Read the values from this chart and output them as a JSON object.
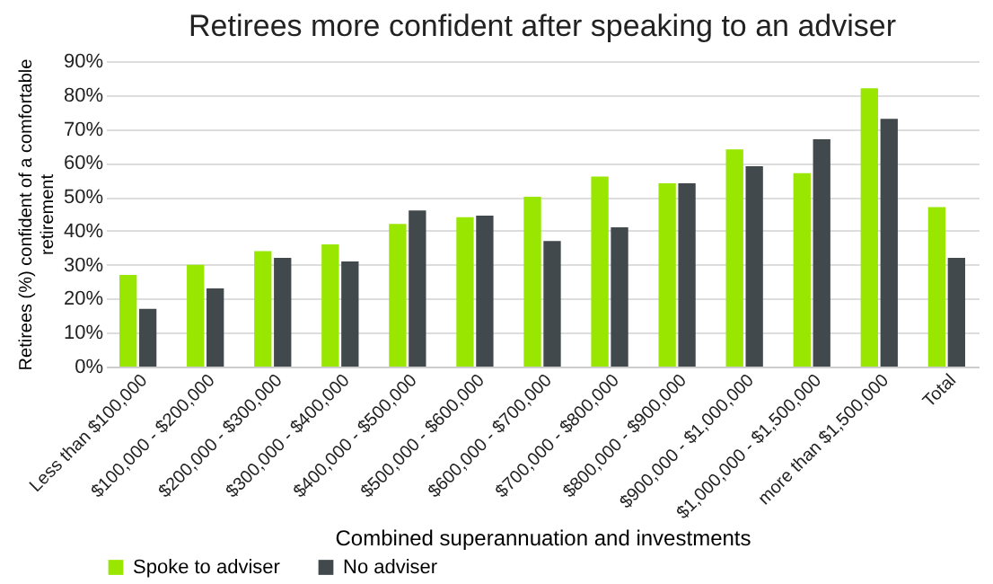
{
  "chart_data": {
    "type": "bar",
    "title": "Retirees more confident after speaking to an adviser",
    "xlabel": "Combined superannuation and investments",
    "ylabel": "Retirees (%) confident of a comfortable retirement",
    "categories": [
      "Less than $100,000",
      "$100,000 - $200,000",
      "$200,000 - $300,000",
      "$300,000 - $400,000",
      "$400,000 - $500,000",
      "$500,000 - $600,000",
      "$600,000 - $700,000",
      "$700,000 - $800,000",
      "$800,000 - $900,000",
      "$900,000 - $1,000,000",
      "$1,000,000 - $1,500,000",
      "more than $1,500,000",
      "Total"
    ],
    "series": [
      {
        "name": "Spoke to adviser",
        "color": "#99e600",
        "values": [
          27,
          30,
          34,
          36,
          42,
          44,
          50,
          56,
          54,
          64,
          57,
          82,
          47
        ]
      },
      {
        "name": "No adviser",
        "color": "#41494d",
        "values": [
          17,
          23,
          32,
          31,
          46,
          44.5,
          37,
          41,
          54,
          59,
          67,
          73,
          32
        ]
      }
    ],
    "ylim": [
      0,
      90
    ],
    "yticks": [
      {
        "value": 0,
        "label": "0%"
      },
      {
        "value": 10,
        "label": "10%"
      },
      {
        "value": 20,
        "label": "20%"
      },
      {
        "value": 30,
        "label": "30%"
      },
      {
        "value": 40,
        "label": "40%"
      },
      {
        "value": 50,
        "label": "50%"
      },
      {
        "value": 60,
        "label": "60%"
      },
      {
        "value": 70,
        "label": "70%"
      },
      {
        "value": 80,
        "label": "80%"
      },
      {
        "value": 90,
        "label": "90%"
      }
    ],
    "grid": "y",
    "legend": "bottom left"
  }
}
